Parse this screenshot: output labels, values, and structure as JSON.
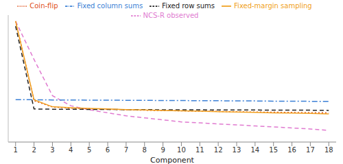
{
  "chart_data": {
    "type": "line",
    "x_label": "Component",
    "x": [
      1,
      2,
      3,
      4,
      5,
      6,
      7,
      8,
      9,
      10,
      11,
      12,
      13,
      14,
      15,
      16,
      17,
      18
    ],
    "xlim": [
      0.6,
      18.4
    ],
    "xticks": [
      1,
      2,
      3,
      4,
      5,
      6,
      7,
      8,
      9,
      10,
      11,
      12,
      13,
      14,
      15,
      16,
      17,
      18
    ],
    "ylim": [
      0,
      6.3
    ],
    "tick_labels": "x",
    "legend": "top",
    "series": [
      {
        "name": "NCS-R observed",
        "color": "#e07ad0",
        "line_style": "dashed",
        "values": [
          6.0,
          4.1,
          2.3,
          1.8,
          1.6,
          1.45,
          1.3,
          1.2,
          1.1,
          1.0,
          0.95,
          0.9,
          0.85,
          0.8,
          0.75,
          0.7,
          0.65,
          0.58
        ]
      },
      {
        "name": "Coin-flip",
        "color": "#e0501a",
        "line_style": "dotted",
        "values": [
          6.0,
          2.05,
          1.74,
          1.68,
          1.65,
          1.62,
          1.6,
          1.58,
          1.56,
          1.55,
          1.53,
          1.52,
          1.5,
          1.49,
          1.48,
          1.47,
          1.46,
          1.45
        ]
      },
      {
        "name": "Fixed column sums",
        "color": "#3a7fd5",
        "line_style": "dashdot",
        "values": [
          2.1,
          2.1,
          2.09,
          2.09,
          2.08,
          2.08,
          2.07,
          2.07,
          2.06,
          2.06,
          2.05,
          2.05,
          2.04,
          2.04,
          2.03,
          2.03,
          2.02,
          2.02
        ]
      },
      {
        "name": "Fixed row sums",
        "color": "#222222",
        "line_style": "dashed",
        "values": [
          5.75,
          1.64,
          1.63,
          1.63,
          1.62,
          1.62,
          1.61,
          1.61,
          1.6,
          1.6,
          1.6,
          1.59,
          1.59,
          1.59,
          1.58,
          1.58,
          1.58,
          1.57
        ]
      },
      {
        "name": "Fixed-margin sampling",
        "color": "#f0a020",
        "line_style": "solid",
        "values": [
          6.0,
          2.1,
          1.75,
          1.7,
          1.67,
          1.64,
          1.61,
          1.59,
          1.57,
          1.55,
          1.53,
          1.51,
          1.49,
          1.47,
          1.45,
          1.44,
          1.42,
          1.4
        ]
      }
    ]
  }
}
